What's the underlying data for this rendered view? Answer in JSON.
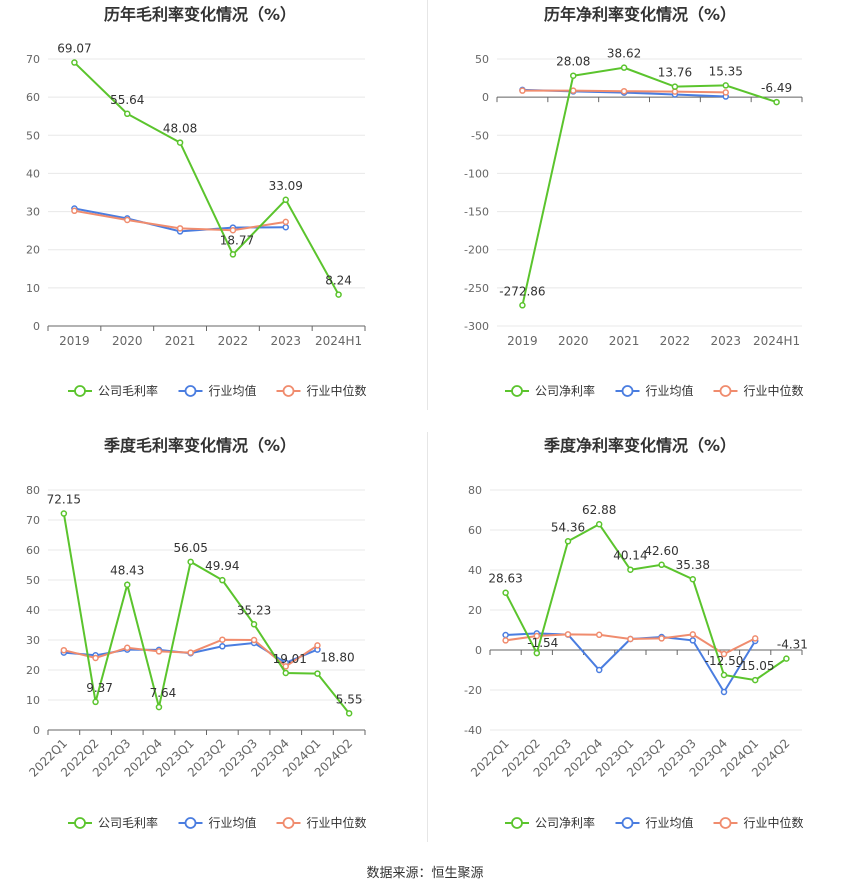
{
  "colors": {
    "company": "#5bc42d",
    "avg": "#4a7de0",
    "median": "#f08c6e"
  },
  "source": "数据来源：恒生聚源",
  "chart_data": [
    {
      "type": "line",
      "title": "历年毛利率变化情况（%）",
      "categories": [
        "2019",
        "2020",
        "2021",
        "2022",
        "2023",
        "2024H1"
      ],
      "ylim": [
        0,
        70
      ],
      "yticks": [
        0,
        10,
        20,
        30,
        40,
        50,
        60,
        70
      ],
      "grid": true,
      "legend_position": "bottom",
      "series": [
        {
          "name": "公司毛利率",
          "values": [
            69.07,
            55.64,
            48.08,
            18.77,
            33.09,
            8.24
          ],
          "labels": [
            "69.07",
            "55.64",
            "48.08",
            "18.77",
            "33.09",
            "8.24"
          ]
        },
        {
          "name": "行业均值",
          "values": [
            30.8,
            28.2,
            24.8,
            25.8,
            25.9,
            null
          ]
        },
        {
          "name": "行业中位数",
          "values": [
            30.2,
            27.8,
            25.6,
            25.1,
            27.3,
            null
          ]
        }
      ]
    },
    {
      "type": "line",
      "title": "历年净利率变化情况（%）",
      "categories": [
        "2019",
        "2020",
        "2021",
        "2022",
        "2023",
        "2024H1"
      ],
      "ylim": [
        -300,
        50
      ],
      "yticks": [
        -300,
        -250,
        -200,
        -150,
        -100,
        -50,
        0,
        50
      ],
      "grid": true,
      "legend_position": "bottom",
      "series": [
        {
          "name": "公司净利率",
          "values": [
            -272.86,
            28.08,
            38.62,
            13.76,
            15.35,
            -6.49
          ],
          "labels": [
            "-272.86",
            "28.08",
            "38.62",
            "13.76",
            "15.35",
            "-6.49"
          ]
        },
        {
          "name": "行业均值",
          "values": [
            9.5,
            7.5,
            6.0,
            3.5,
            0.8,
            null
          ]
        },
        {
          "name": "行业中位数",
          "values": [
            8.5,
            8.5,
            7.8,
            7.3,
            6.2,
            null
          ]
        }
      ]
    },
    {
      "type": "line",
      "title": "季度毛利率变化情况（%）",
      "categories": [
        "2022Q1",
        "2022Q2",
        "2022Q3",
        "2022Q4",
        "2023Q1",
        "2023Q2",
        "2023Q3",
        "2023Q4",
        "2024Q1",
        "2024Q2"
      ],
      "ylim": [
        0,
        80
      ],
      "yticks": [
        0,
        10,
        20,
        30,
        40,
        50,
        60,
        70,
        80
      ],
      "grid": true,
      "legend_position": "bottom",
      "series": [
        {
          "name": "公司毛利率",
          "values": [
            72.15,
            9.37,
            48.43,
            7.64,
            56.05,
            49.94,
            35.23,
            19.01,
            18.8,
            5.55
          ],
          "labels": [
            "72.15",
            "9.37",
            "48.43",
            "7.64",
            "56.05",
            "49.94",
            "35.23",
            "19.01",
            "18.80",
            "5.55"
          ]
        },
        {
          "name": "行业均值",
          "values": [
            25.8,
            24.9,
            26.8,
            26.7,
            25.6,
            27.9,
            29.0,
            22.4,
            26.8,
            null
          ]
        },
        {
          "name": "行业中位数",
          "values": [
            26.6,
            24.0,
            27.4,
            26.2,
            25.8,
            30.1,
            30.0,
            21.2,
            28.2,
            null
          ]
        }
      ]
    },
    {
      "type": "line",
      "title": "季度净利率变化情况（%）",
      "categories": [
        "2022Q1",
        "2022Q2",
        "2022Q3",
        "2022Q4",
        "2023Q1",
        "2023Q2",
        "2023Q3",
        "2023Q4",
        "2024Q1",
        "2024Q2"
      ],
      "ylim": [
        -40,
        80
      ],
      "yticks": [
        -40,
        -20,
        0,
        20,
        40,
        60,
        80
      ],
      "grid": true,
      "legend_position": "bottom",
      "series": [
        {
          "name": "公司净利率",
          "values": [
            28.63,
            -1.54,
            54.36,
            62.88,
            40.14,
            42.6,
            35.38,
            -12.5,
            -15.05,
            -4.31
          ],
          "labels": [
            "28.63",
            "-1.54",
            "54.36",
            "62.88",
            "40.14",
            "42.60",
            "35.38",
            "-12.50",
            "-15.05",
            "-4.31"
          ]
        },
        {
          "name": "行业均值",
          "values": [
            7.5,
            8.3,
            7.7,
            -10.0,
            5.5,
            6.5,
            4.8,
            -21.0,
            4.5,
            null
          ]
        },
        {
          "name": "行业中位数",
          "values": [
            4.8,
            7.0,
            7.8,
            7.6,
            5.5,
            5.8,
            7.8,
            -2.0,
            5.8,
            null
          ]
        }
      ]
    }
  ]
}
